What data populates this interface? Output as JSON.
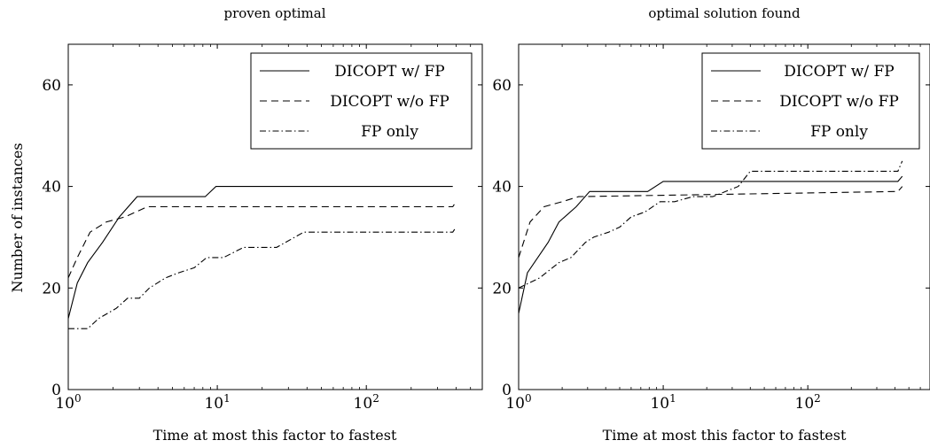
{
  "shared": {
    "xlabel": "Time at most this factor to fastest",
    "ylabel": "Number of instances"
  },
  "chart_data": [
    {
      "type": "line",
      "title": "proven optimal",
      "xlabel": "Time at most this factor to fastest",
      "ylabel": "Number of instances",
      "xscale": "log",
      "xlim": [
        1,
        600
      ],
      "ylim": [
        0,
        68
      ],
      "xticks": [
        1,
        10,
        100
      ],
      "xtick_labels": [
        {
          "base": "10",
          "exp": "0"
        },
        {
          "base": "10",
          "exp": "1"
        },
        {
          "base": "10",
          "exp": "2"
        }
      ],
      "yticks": [
        0,
        20,
        40,
        60
      ],
      "legend_position": "top-right",
      "grid": false,
      "series": [
        {
          "name": "DICOPT w/ FP",
          "style": "solid",
          "x": [
            1,
            1.15,
            1.35,
            1.7,
            2.2,
            2.9,
            8.3,
            9.8,
            380
          ],
          "y": [
            14,
            21,
            25,
            29,
            34,
            38,
            38,
            40,
            40
          ]
        },
        {
          "name": "DICOPT w/o FP",
          "style": "dashed",
          "x": [
            1,
            1.15,
            1.4,
            1.8,
            2.4,
            3.4,
            380,
            400
          ],
          "y": [
            22,
            26,
            31,
            33,
            34,
            36,
            36,
            37
          ]
        },
        {
          "name": "FP only",
          "style": "dashdot",
          "x": [
            1,
            1.35,
            1.6,
            2.1,
            2.5,
            3.0,
            3.5,
            4.5,
            5.5,
            7.0,
            8.5,
            11,
            15,
            25,
            38,
            380,
            400
          ],
          "y": [
            12,
            12,
            14,
            16,
            18,
            18,
            20,
            22,
            23,
            24,
            26,
            26,
            28,
            28,
            31,
            31,
            32
          ]
        }
      ]
    },
    {
      "type": "line",
      "title": "optimal solution found",
      "xlabel": "Time at most this factor to fastest",
      "ylabel": "",
      "xscale": "log",
      "xlim": [
        1,
        700
      ],
      "ylim": [
        0,
        68
      ],
      "xticks": [
        1,
        10,
        100
      ],
      "xtick_labels": [
        {
          "base": "10",
          "exp": "0"
        },
        {
          "base": "10",
          "exp": "1"
        },
        {
          "base": "10",
          "exp": "2"
        }
      ],
      "yticks": [
        0,
        20,
        40,
        60
      ],
      "legend_position": "top-right",
      "grid": false,
      "series": [
        {
          "name": "DICOPT w/ FP",
          "style": "solid",
          "x": [
            1,
            1.15,
            1.6,
            1.9,
            2.5,
            3.1,
            7.8,
            10,
            420,
            450
          ],
          "y": [
            15,
            23,
            29,
            33,
            36,
            39,
            39,
            41,
            41,
            42
          ]
        },
        {
          "name": "DICOPT w/o FP",
          "style": "dashed",
          "x": [
            1,
            1.2,
            1.5,
            2.0,
            2.6,
            420,
            450
          ],
          "y": [
            26,
            33,
            36,
            37,
            38,
            39,
            40
          ]
        },
        {
          "name": "FP only",
          "style": "dashdot",
          "x": [
            1,
            1.4,
            1.9,
            2.3,
            2.9,
            3.3,
            4.2,
            5.0,
            6.0,
            7.5,
            9.5,
            12,
            16,
            22,
            33,
            40,
            420,
            450
          ],
          "y": [
            20,
            22,
            25,
            26,
            29,
            30,
            31,
            32,
            34,
            35,
            37,
            37,
            38,
            38,
            40,
            43,
            43,
            45
          ]
        }
      ]
    }
  ]
}
